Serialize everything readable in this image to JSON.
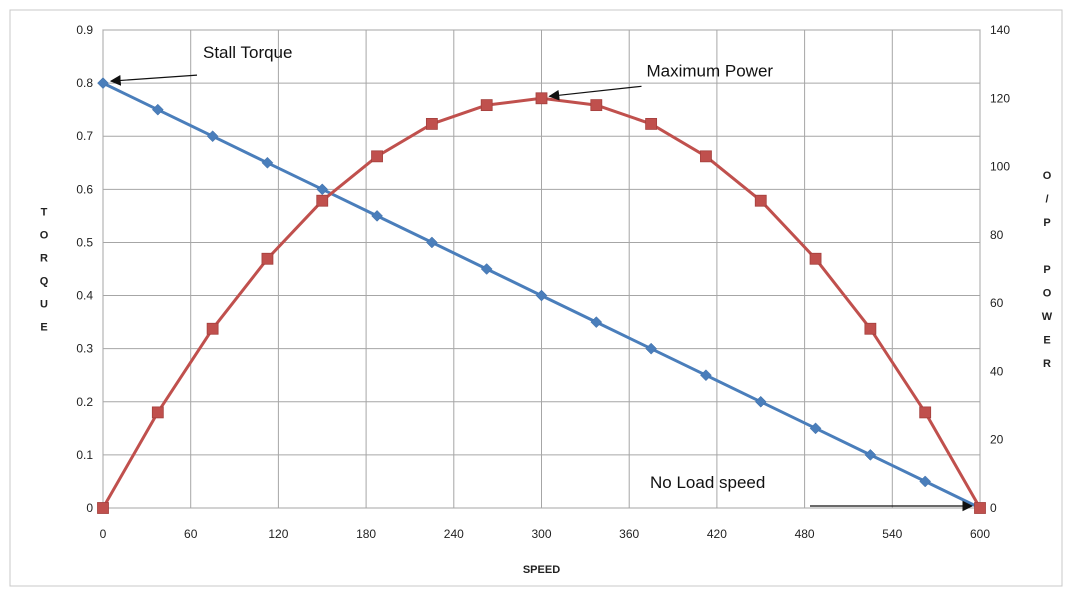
{
  "chart_data": {
    "type": "line",
    "xlabel": "SPEED",
    "ylabel": "TORQUE",
    "y2label": "O/P POWER",
    "x_ticks": [
      0,
      60,
      120,
      180,
      240,
      300,
      360,
      420,
      480,
      540,
      600
    ],
    "y_ticks": [
      0,
      0.1,
      0.2,
      0.3,
      0.4,
      0.5,
      0.6,
      0.7,
      0.8,
      0.9
    ],
    "y2_ticks": [
      0,
      20,
      40,
      60,
      80,
      100,
      120,
      140
    ],
    "xlim": [
      0,
      600
    ],
    "ylim": [
      0,
      0.9
    ],
    "y2lim": [
      0,
      140
    ],
    "grid": true,
    "series": [
      {
        "axis": "left",
        "color": "#4a7ebb",
        "marker": "diamond",
        "x": [
          0,
          37.5,
          75,
          112.5,
          150,
          187.5,
          225,
          262.5,
          300,
          337.5,
          375,
          412.5,
          450,
          487.5,
          525,
          562.5,
          600
        ],
        "values": [
          0.8,
          0.75,
          0.7,
          0.65,
          0.6,
          0.55,
          0.5,
          0.45,
          0.4,
          0.35,
          0.3,
          0.25,
          0.2,
          0.15,
          0.1,
          0.05,
          0
        ]
      },
      {
        "axis": "right",
        "color": "#c0504d",
        "marker": "square",
        "x": [
          0,
          37.5,
          75,
          112.5,
          150,
          187.5,
          225,
          262.5,
          300,
          337.5,
          375,
          412.5,
          450,
          487.5,
          525,
          562.5,
          600
        ],
        "values": [
          0,
          28,
          52.5,
          73,
          90,
          103,
          112.5,
          118,
          120,
          118,
          112.5,
          103,
          90,
          73,
          52.5,
          28,
          0
        ]
      }
    ],
    "annotations": [
      {
        "text": "Stall Torque",
        "x": 0,
        "y": 0.8,
        "axis": "left"
      },
      {
        "text": "Maximum Power",
        "x": 300,
        "y": 120,
        "axis": "right"
      },
      {
        "text": "No Load speed",
        "x": 600,
        "y": 0,
        "axis": "left"
      }
    ]
  }
}
